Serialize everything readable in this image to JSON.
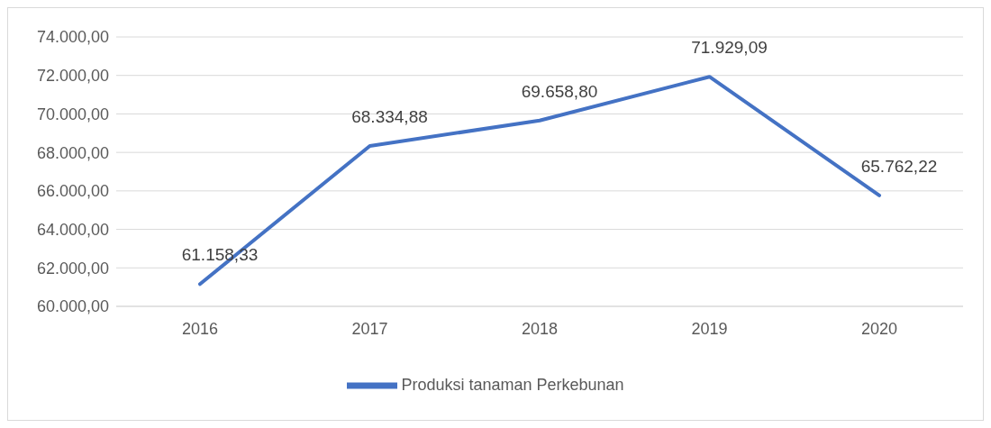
{
  "chart_data": {
    "type": "line",
    "categories": [
      "2016",
      "2017",
      "2018",
      "2019",
      "2020"
    ],
    "series": [
      {
        "name": "Produksi tanaman Perkebunan",
        "color": "#4472c4",
        "values": [
          61158.33,
          68334.88,
          69658.8,
          71929.09,
          65762.22
        ],
        "value_labels": [
          "61.158,33",
          "68.334,88",
          "69.658,80",
          "71.929,09",
          "65.762,22"
        ]
      }
    ],
    "ylim": [
      60000,
      74000
    ],
    "yticks": [
      {
        "value": 60000,
        "label": "60.000,00"
      },
      {
        "value": 62000,
        "label": "62.000,00"
      },
      {
        "value": 64000,
        "label": "64.000,00"
      },
      {
        "value": 66000,
        "label": "66.000,00"
      },
      {
        "value": 68000,
        "label": "68.000,00"
      },
      {
        "value": 70000,
        "label": "70.000,00"
      },
      {
        "value": 72000,
        "label": "72.000,00"
      },
      {
        "value": 74000,
        "label": "74.000,00"
      }
    ],
    "grid": "y",
    "legend": "bottom",
    "marker": "none",
    "line_style": "solid"
  }
}
